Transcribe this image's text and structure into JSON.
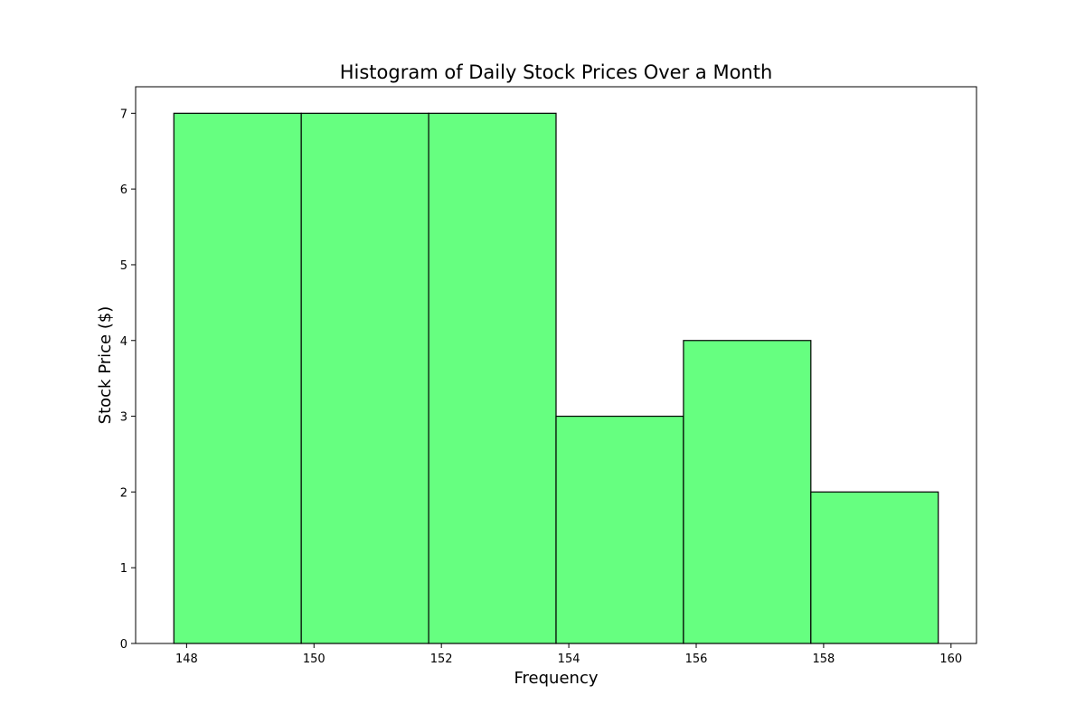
{
  "chart_data": {
    "type": "bar",
    "title": "Histogram of Daily Stock Prices Over a Month",
    "xlabel": "Frequency",
    "ylabel": "Stock Price ($)",
    "bins": [
      {
        "start": 147.8,
        "end": 149.8,
        "value": 7
      },
      {
        "start": 149.8,
        "end": 151.8,
        "value": 7
      },
      {
        "start": 151.8,
        "end": 153.8,
        "value": 7
      },
      {
        "start": 153.8,
        "end": 155.8,
        "value": 3
      },
      {
        "start": 155.8,
        "end": 157.8,
        "value": 4
      },
      {
        "start": 157.8,
        "end": 159.8,
        "value": 2
      }
    ],
    "xlim": [
      147.2,
      160.4
    ],
    "ylim": [
      0,
      7.35
    ],
    "xticks": [
      148,
      150,
      152,
      154,
      156,
      158,
      160
    ],
    "yticks": [
      0,
      1,
      2,
      3,
      4,
      5,
      6,
      7
    ],
    "grid": false,
    "bar_color": "#66ff80",
    "edge_color": "#000000"
  }
}
